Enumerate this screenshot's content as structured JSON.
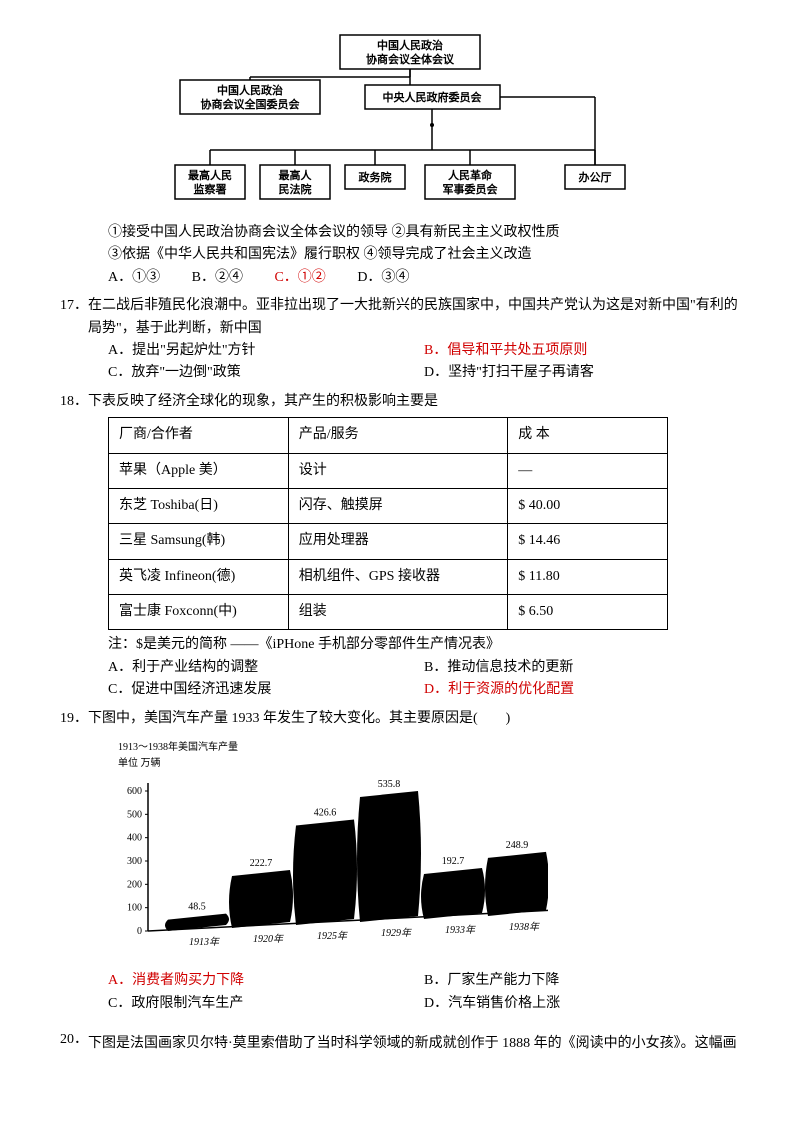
{
  "org": {
    "top": "中国人民政治\n协商会议全体会议",
    "left_upper": "中国人民政治\n协商会议全国委员会",
    "center": "中央人民政府委员会",
    "bottom": [
      "最高人民\n监察署",
      "最高人\n民法院",
      "政务院",
      "人民革命\n军事委员会",
      "办公厅"
    ]
  },
  "q16": {
    "s1": "①接受中国人民政治协商会议全体会议的领导  ②具有新民主主义政权性质",
    "s2": "③依据《中华人民共和国宪法》履行职权    ④领导完成了社会主义改造",
    "opts": {
      "a": "A．①③",
      "b": "B．②④",
      "c": "C．①②",
      "d": "D．③④"
    }
  },
  "q17": {
    "num": "17．",
    "text": "在二战后非殖民化浪潮中。亚非拉出现了一大批新兴的民族国家中，中国共产党认为这是对新中国\"有利的局势\"，基于此判断，新中国",
    "a": "A．提出\"另起炉灶\"方针",
    "b": "B．倡导和平共处五项原则",
    "c": "C．放弃\"一边倒\"政策",
    "d": "D．坚持\"打扫干屋子再请客"
  },
  "q18": {
    "num": "18．",
    "text": "下表反映了经济全球化的现象，其产生的积极影响主要是",
    "headers": [
      "厂商/合作者",
      "产品/服务",
      "成 本"
    ],
    "rows": [
      [
        "苹果（Apple 美）",
        "设计",
        "—"
      ],
      [
        "东芝 Toshiba(日)",
        "闪存、触摸屏",
        "$ 40.00"
      ],
      [
        "三星 Samsung(韩)",
        "应用处理器",
        "$ 14.46"
      ],
      [
        "英飞凌 Infineon(德)",
        "相机组件、GPS 接收器",
        "$ 11.80"
      ],
      [
        "富士康 Foxconn(中)",
        "组装",
        "$ 6.50"
      ]
    ],
    "note": "注：$是美元的简称 ——《iPHone 手机部分零部件生产情况表》",
    "a": "A．利于产业结构的调整",
    "b": "B．推动信息技术的更新",
    "c": "C．促进中国经济迅速发展",
    "d": "D．利于资源的优化配置"
  },
  "q19": {
    "num": "19．",
    "text": "下图中，美国汽车产量 1933 年发生了较大变化。其主要原因是(　　)",
    "chart": {
      "title": "1913～1938年美国汽车产量",
      "unit": "单位  万辆",
      "y_ticks": [
        0,
        100,
        200,
        300,
        400,
        500,
        600
      ],
      "bars": [
        {
          "label": "1913年",
          "value": 48.5
        },
        {
          "label": "1920年",
          "value": 222.7
        },
        {
          "label": "1925年",
          "value": 426.6
        },
        {
          "label": "1929年",
          "value": 535.8
        },
        {
          "label": "1933年",
          "value": 192.7
        },
        {
          "label": "1938年",
          "value": 248.9
        }
      ],
      "fill": "#000000",
      "axis_color": "#000000"
    },
    "a": "A．消费者购买力下降",
    "b": "B．厂家生产能力下降",
    "c": "C．政府限制汽车生产",
    "d": "D．汽车销售价格上涨"
  },
  "q20": {
    "num": "20．",
    "text": "下图是法国画家贝尔特·莫里索借助了当时科学领域的新成就创作于 1888 年的《阅读中的小女孩》。这幅画"
  },
  "col_widths": [
    "180px",
    "220px",
    "160px"
  ]
}
